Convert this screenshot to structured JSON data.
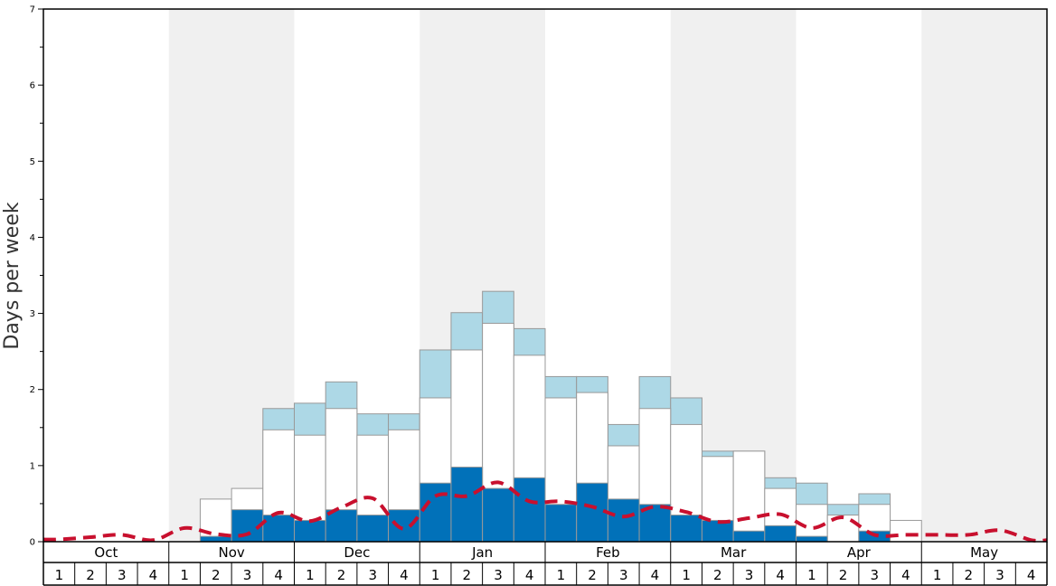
{
  "colors": {
    "shade_band": "#f0f0f0",
    "snow_dark": "#0171b9",
    "snow_light": "#add8e6",
    "snow_white": "#ffffff",
    "bar_edge": "#999999",
    "average_line": "#c8102e",
    "frame": "#000000"
  },
  "chart_data": {
    "type": "bar",
    "ylabel": "Days per week",
    "ylim": [
      0,
      7
    ],
    "yticks": [
      "0",
      "1",
      "2",
      "3",
      "4",
      "5",
      "6",
      "7"
    ],
    "months": [
      "Oct",
      "Nov",
      "Dec",
      "Jan",
      "Feb",
      "Mar",
      "Apr",
      "May"
    ],
    "weeks": [
      "1",
      "2",
      "3",
      "4"
    ],
    "categories": [
      "Oct 1",
      "Oct 2",
      "Oct 3",
      "Oct 4",
      "Nov 1",
      "Nov 2",
      "Nov 3",
      "Nov 4",
      "Dec 1",
      "Dec 2",
      "Dec 3",
      "Dec 4",
      "Jan 1",
      "Jan 2",
      "Jan 3",
      "Jan 4",
      "Feb 1",
      "Feb 2",
      "Feb 3",
      "Feb 4",
      "Mar 1",
      "Mar 2",
      "Mar 3",
      "Mar 4",
      "Apr 1",
      "Apr 2",
      "Apr 3",
      "Apr 4",
      "May 1",
      "May 2",
      "May 3",
      "May 4"
    ],
    "series": [
      {
        "values": [
          0,
          0,
          0,
          0,
          0,
          0.07,
          0.42,
          0.35,
          0.28,
          0.42,
          0.35,
          0.42,
          0.77,
          0.98,
          0.7,
          0.84,
          0.49,
          0.77,
          0.56,
          0.49,
          0.35,
          0.28,
          0.14,
          0.21,
          0.07,
          0,
          0.14,
          0,
          0,
          0,
          0,
          0
        ]
      },
      {
        "values": [
          0,
          0,
          0,
          0,
          0,
          0.56,
          0.7,
          1.47,
          1.4,
          1.75,
          1.4,
          1.47,
          1.89,
          2.52,
          2.87,
          2.45,
          1.89,
          1.96,
          1.26,
          1.75,
          1.54,
          1.12,
          1.19,
          0.7,
          0.49,
          0.35,
          0.49,
          0.28,
          0,
          0,
          0,
          0
        ]
      },
      {
        "values": [
          0,
          0,
          0,
          0,
          0,
          0,
          0,
          1.75,
          1.82,
          2.1,
          1.68,
          1.68,
          2.52,
          3.01,
          3.29,
          2.8,
          2.17,
          2.17,
          1.54,
          2.17,
          1.89,
          1.19,
          1.19,
          0.84,
          0.77,
          0.49,
          0.63,
          0,
          0,
          0,
          0,
          0
        ]
      },
      {
        "values": [
          0.03,
          0.06,
          0.09,
          0.02,
          0.18,
          0.1,
          0.1,
          0.38,
          0.27,
          0.45,
          0.57,
          0.17,
          0.6,
          0.6,
          0.78,
          0.53,
          0.53,
          0.46,
          0.33,
          0.46,
          0.39,
          0.26,
          0.31,
          0.36,
          0.18,
          0.32,
          0.09,
          0.09,
          0.09,
          0.09,
          0.15,
          0.02
        ]
      }
    ]
  }
}
